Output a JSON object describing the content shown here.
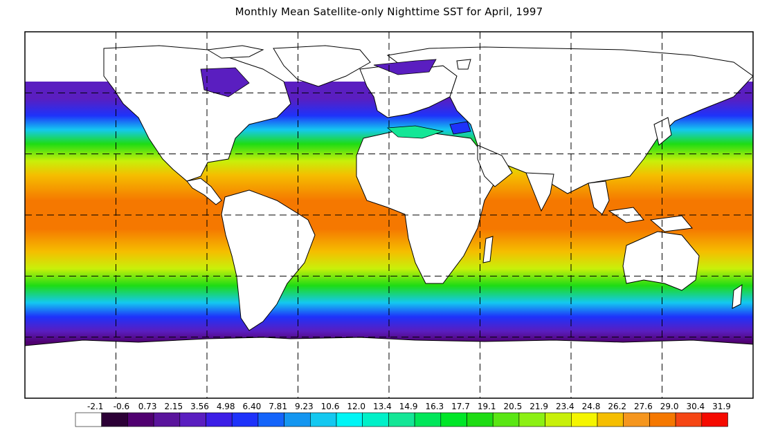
{
  "title": "Monthly Mean Satellite-only Nighttime SST for April, 1997",
  "map": {
    "projection": "equirectangular",
    "lon_range": [
      -180,
      180
    ],
    "lat_range": [
      -90,
      90
    ],
    "grid_lines_lon": [
      -135,
      -90,
      -45,
      0,
      45,
      90,
      135
    ],
    "grid_lines_lat": [
      -60,
      -30,
      0,
      30,
      60
    ],
    "grid_style": "dashed"
  },
  "colorbar": {
    "labels": [
      "-2.1",
      "-0.6",
      "0.73",
      "2.15",
      "3.56",
      "4.98",
      "6.40",
      "7.81",
      "9.23",
      "10.6",
      "12.0",
      "13.4",
      "14.9",
      "16.3",
      "17.7",
      "19.1",
      "20.5",
      "21.9",
      "23.4",
      "24.8",
      "26.2",
      "27.6",
      "29.0",
      "30.4",
      "31.9"
    ],
    "colors": [
      "#ffffff",
      "#2c0036",
      "#500070",
      "#5a149c",
      "#5a1ec0",
      "#3c1ee6",
      "#1e32fa",
      "#1464fa",
      "#1496f0",
      "#14c8f0",
      "#00f5f5",
      "#00f0c8",
      "#14e696",
      "#00e65a",
      "#00e628",
      "#1edc14",
      "#5ae614",
      "#8cf014",
      "#c8f00a",
      "#f5f500",
      "#f5be00",
      "#f5961e",
      "#f57800",
      "#f54614",
      "#f50a00"
    ]
  }
}
